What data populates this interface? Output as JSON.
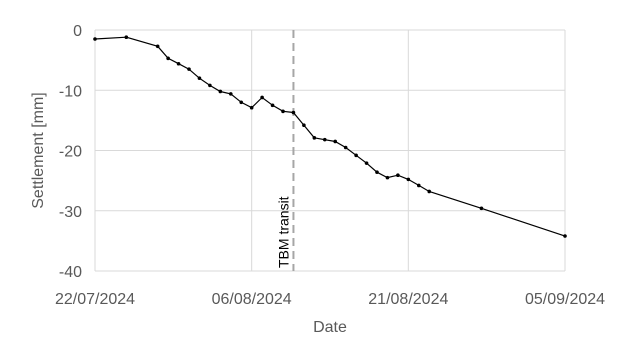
{
  "chart_data": {
    "type": "line",
    "xlabel": "Date",
    "ylabel": "Settlement [mm]",
    "ylim": [
      -40,
      0
    ],
    "y_ticks": [
      "0",
      "-10",
      "-20",
      "-30",
      "-40"
    ],
    "x_ticks": [
      "22/07/2024",
      "06/08/2024",
      "21/08/2024",
      "05/09/2024"
    ],
    "grid": true,
    "colors": {
      "line": "#000000",
      "grid": "#d9d9d9",
      "axis": "#d9d9d9",
      "marker_line": "#a6a6a6"
    },
    "annotation": {
      "label": "TBM transit",
      "date": "2024-08-10"
    },
    "series": [
      {
        "x": [
          "2024-07-22",
          "2024-07-25",
          "2024-07-28",
          "2024-07-29",
          "2024-07-30",
          "2024-07-31",
          "2024-08-01",
          "2024-08-02",
          "2024-08-03",
          "2024-08-04",
          "2024-08-05",
          "2024-08-06",
          "2024-08-07",
          "2024-08-08",
          "2024-08-09",
          "2024-08-10",
          "2024-08-11",
          "2024-08-12",
          "2024-08-13",
          "2024-08-14",
          "2024-08-15",
          "2024-08-16",
          "2024-08-17",
          "2024-08-18",
          "2024-08-19",
          "2024-08-20",
          "2024-08-21",
          "2024-08-22",
          "2024-08-23",
          "2024-08-28",
          "2024-09-05"
        ],
        "y": [
          -1.5,
          -1.2,
          -2.7,
          -4.7,
          -5.6,
          -6.5,
          -8.0,
          -9.2,
          -10.2,
          -10.6,
          -12.0,
          -12.9,
          -11.2,
          -12.5,
          -13.5,
          -13.7,
          -15.8,
          -17.9,
          -18.2,
          -18.5,
          -19.5,
          -20.8,
          -22.1,
          -23.6,
          -24.5,
          -24.1,
          -24.8,
          -25.8,
          -26.8,
          -29.6,
          -34.2
        ]
      }
    ]
  }
}
